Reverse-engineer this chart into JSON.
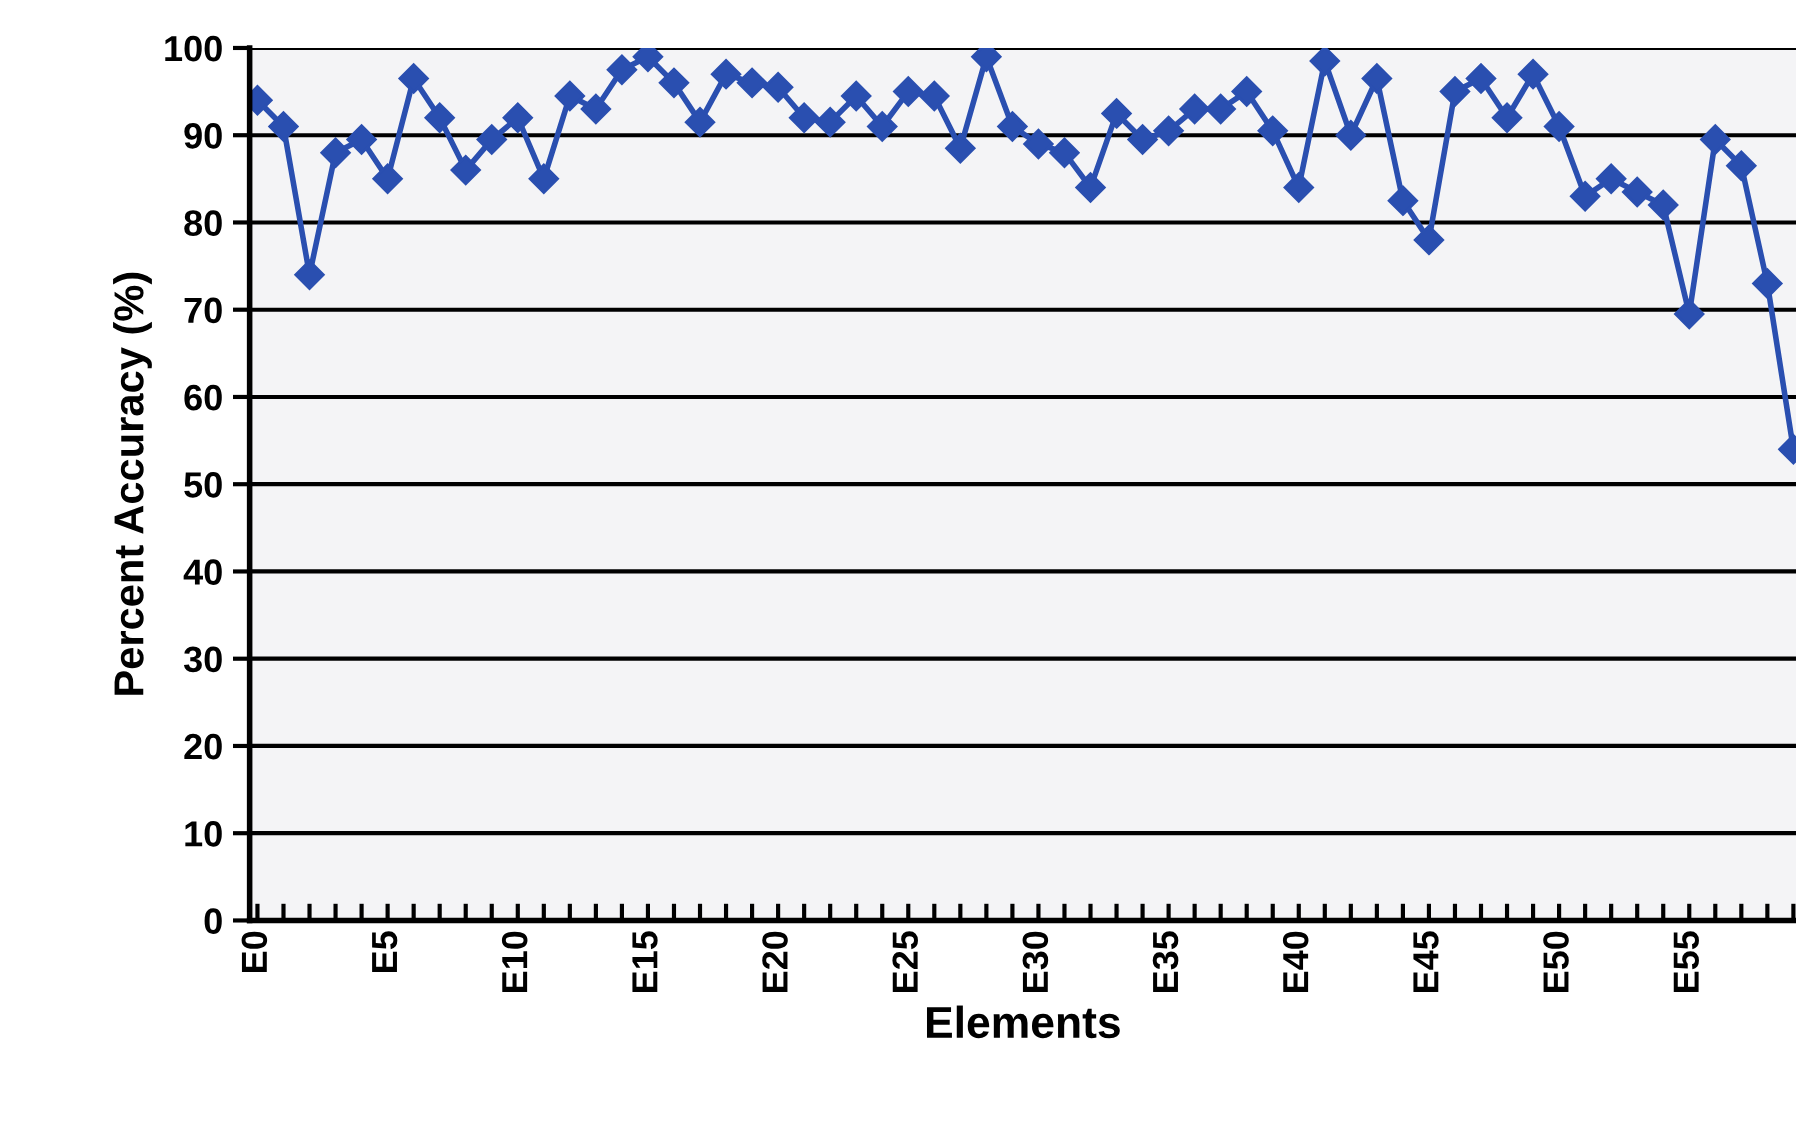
{
  "chart_data": {
    "type": "line",
    "xlabel": "Elements",
    "ylabel": "Percent Accuracy (%)",
    "categories": [
      "E0",
      null,
      null,
      null,
      null,
      "E5",
      null,
      null,
      null,
      null,
      "E10",
      null,
      null,
      null,
      null,
      "E15",
      null,
      null,
      null,
      null,
      "E20",
      null,
      null,
      null,
      null,
      "E25",
      null,
      null,
      null,
      null,
      "E30",
      null,
      null,
      null,
      null,
      "E35",
      null,
      null,
      null,
      null,
      "E40",
      null,
      null,
      null,
      null,
      "E45",
      null,
      null,
      null,
      null,
      "E50",
      null,
      null,
      null,
      null,
      "E55",
      null,
      null,
      null,
      null
    ],
    "series": [
      {
        "color": "#2a4fb0",
        "values": [
          94,
          91,
          74,
          88,
          89.5,
          85,
          96.5,
          92,
          86,
          89.5,
          92,
          85,
          94.5,
          93,
          97.5,
          99,
          96,
          91.5,
          97,
          96,
          95.5,
          92,
          91.5,
          94.5,
          91,
          95,
          94.5,
          88.5,
          99,
          91,
          89,
          88,
          84,
          92.5,
          89.5,
          90.5,
          93,
          93,
          95,
          90.5,
          84,
          98.5,
          90,
          96.5,
          82.5,
          78,
          95,
          96.5,
          92,
          97,
          91,
          83,
          85,
          83.5,
          82,
          69.5,
          89.5,
          86.5,
          73,
          54
        ]
      }
    ],
    "ylim": [
      0,
      100
    ],
    "yticks": [
      0,
      10,
      20,
      30,
      40,
      50,
      60,
      70,
      80,
      90,
      100
    ],
    "grid": "y",
    "marker": "diamond",
    "line_style": "solid",
    "legend": false
  }
}
